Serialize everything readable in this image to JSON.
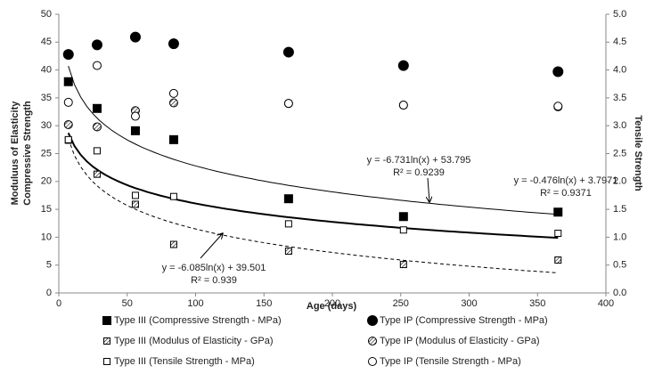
{
  "chart_data": {
    "type": "scatter",
    "x_label": "Age (days)",
    "y_label": [
      "Moduluus of Elasticity",
      "Compressive Strength"
    ],
    "y2_label": "Tensile Strength",
    "xlim": [
      0,
      400
    ],
    "xticks": [
      0,
      50,
      100,
      150,
      200,
      250,
      300,
      350,
      400
    ],
    "ylim": [
      0,
      50
    ],
    "yticks": [
      0,
      5,
      10,
      15,
      20,
      25,
      30,
      35,
      40,
      45,
      50
    ],
    "y2lim": [
      0,
      5
    ],
    "y2ticks": [
      {
        "value": 0,
        "label": "0.0"
      },
      {
        "value": 0.5,
        "label": "0.5"
      },
      {
        "value": 1,
        "label": "1.0"
      },
      {
        "value": 1.5,
        "label": "1.5"
      },
      {
        "value": 2,
        "label": "2.0"
      },
      {
        "value": 2.5,
        "label": "2.5"
      },
      {
        "value": 3,
        "label": "3.0"
      },
      {
        "value": 3.5,
        "label": "3.5"
      },
      {
        "value": 4,
        "label": "4.0"
      },
      {
        "value": 4.5,
        "label": "4.5"
      },
      {
        "value": 5,
        "label": "5.0"
      }
    ],
    "legend": "bottom",
    "x": [
      7,
      28,
      56,
      84,
      168,
      252,
      365
    ],
    "series": [
      {
        "name": "Type III (Compressive Strength - MPa)",
        "color": "#000000",
        "marker": "square",
        "fill": "solid",
        "values": [
          37.9,
          33.1,
          29.1,
          27.5,
          16.9,
          13.7,
          14.5
        ],
        "trendline": {
          "slope": -6.731,
          "intercept": 53.795,
          "style": "thin",
          "label": "y = -6.731ln(x) + 53.795",
          "r2_label": "R² = 0.9239"
        }
      },
      {
        "name": "Type IP (Compressive Strength - MPa)",
        "color": "#000000",
        "marker": "circle",
        "fill": "solid",
        "values": [
          42.8,
          44.5,
          45.9,
          44.7,
          43.2,
          40.8,
          39.7
        ]
      },
      {
        "name": "Type III (Modulus of Elasticity - GPa)",
        "color": "#000000",
        "marker": "square",
        "fill": "hatch",
        "values": [
          27.4,
          21.3,
          15.9,
          8.7,
          7.5,
          5.1,
          5.9
        ],
        "trendline": {
          "slope": -6.085,
          "intercept": 39.501,
          "style": "dashed",
          "label": "y = -6.085ln(x) + 39.501",
          "r2_label": "R² = 0.939"
        }
      },
      {
        "name": "Type IP (Modulus of Elasticity - GPa)",
        "color": "#000000",
        "marker": "circle",
        "fill": "hatch",
        "values": [
          30.2,
          29.8,
          32.7,
          34.1,
          34.0,
          33.7,
          33.4
        ]
      },
      {
        "name": "Type III (Tensile Strength - MPa)",
        "color": "#000000",
        "marker": "square",
        "fill": "open",
        "axis": "y2",
        "values": [
          2.75,
          2.55,
          1.75,
          1.73,
          1.24,
          1.13,
          1.07
        ],
        "trendline": {
          "slope": -0.476,
          "intercept": 3.7971,
          "style": "thick",
          "label": "y = -0.476ln(x) + 3.7971",
          "r2_label": "R² = 0.9371"
        }
      },
      {
        "name": "Type IP (Tensile Strength - MPa)",
        "color": "#000000",
        "marker": "circle",
        "fill": "open",
        "axis": "y2",
        "values": [
          3.42,
          4.08,
          3.17,
          3.58,
          3.4,
          3.37,
          3.35
        ]
      }
    ]
  }
}
